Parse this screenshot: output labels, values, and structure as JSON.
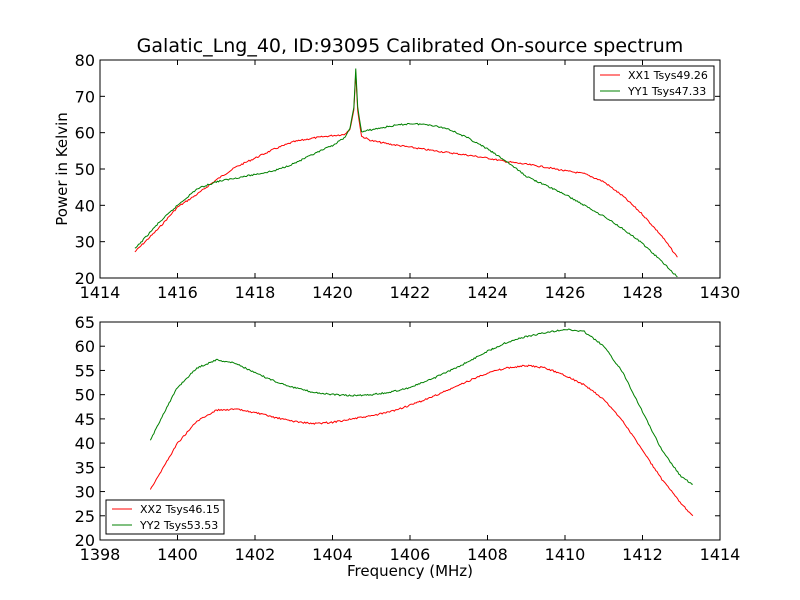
{
  "chart_data": [
    {
      "type": "line",
      "title": "Galatic_Lng_40, ID:93095 Calibrated On-source spectrum",
      "xlabel": "",
      "ylabel": "Power in Kelvin",
      "xlim": [
        1414,
        1430
      ],
      "ylim": [
        20,
        80
      ],
      "xticks": [
        1414,
        1416,
        1418,
        1420,
        1422,
        1424,
        1426,
        1428,
        1430
      ],
      "yticks": [
        20,
        30,
        40,
        50,
        60,
        70,
        80
      ],
      "grid": false,
      "legend_position": "top-right",
      "series": [
        {
          "name": "XX1 Tsys49.26",
          "color": "#ff0000",
          "x": [
            1414.9,
            1415.5,
            1416.0,
            1416.5,
            1417.0,
            1417.5,
            1418.0,
            1418.5,
            1419.0,
            1419.5,
            1420.0,
            1420.3,
            1420.45,
            1420.55,
            1420.6,
            1420.65,
            1420.75,
            1421.0,
            1421.5,
            1422.0,
            1422.5,
            1423.0,
            1423.5,
            1424.0,
            1424.5,
            1425.0,
            1425.5,
            1426.0,
            1426.5,
            1427.0,
            1427.5,
            1428.0,
            1428.5,
            1428.9
          ],
          "y": [
            27.2,
            33.5,
            39.5,
            43.0,
            47.0,
            50.5,
            53.0,
            55.5,
            57.5,
            58.5,
            59.2,
            59.5,
            61.0,
            66.0,
            76.5,
            66.0,
            59.0,
            57.8,
            56.8,
            56.0,
            55.2,
            54.5,
            53.8,
            53.0,
            52.0,
            51.3,
            50.5,
            49.5,
            48.7,
            46.5,
            42.5,
            37.5,
            31.5,
            25.7
          ]
        },
        {
          "name": "YY1 Tsys47.33",
          "color": "#008000",
          "x": [
            1414.9,
            1415.5,
            1416.0,
            1416.5,
            1417.0,
            1417.5,
            1418.0,
            1418.5,
            1419.0,
            1419.5,
            1420.0,
            1420.3,
            1420.45,
            1420.55,
            1420.6,
            1420.65,
            1420.75,
            1421.0,
            1421.5,
            1422.0,
            1422.5,
            1423.0,
            1423.5,
            1424.0,
            1424.5,
            1425.0,
            1425.5,
            1426.0,
            1426.5,
            1427.0,
            1427.5,
            1428.0,
            1428.5,
            1428.9
          ],
          "y": [
            28.0,
            35.0,
            40.0,
            44.5,
            46.5,
            47.5,
            48.5,
            49.5,
            51.5,
            54.0,
            56.5,
            58.5,
            61.0,
            67.0,
            77.5,
            67.0,
            60.2,
            60.8,
            61.8,
            62.5,
            62.2,
            61.0,
            58.5,
            55.5,
            52.0,
            48.0,
            45.5,
            43.0,
            40.0,
            37.0,
            33.5,
            29.5,
            24.5,
            20.3
          ]
        }
      ]
    },
    {
      "type": "line",
      "title": "",
      "xlabel": "Frequency (MHz)",
      "ylabel": "",
      "xlim": [
        1398,
        1414
      ],
      "ylim": [
        20,
        65
      ],
      "xticks": [
        1398,
        1400,
        1402,
        1404,
        1406,
        1408,
        1410,
        1412,
        1414
      ],
      "yticks": [
        20,
        25,
        30,
        35,
        40,
        45,
        50,
        55,
        60,
        65
      ],
      "grid": false,
      "legend_position": "bottom-left",
      "series": [
        {
          "name": "XX2 Tsys46.15",
          "color": "#ff0000",
          "x": [
            1399.3,
            1399.6,
            1400.0,
            1400.5,
            1401.0,
            1401.5,
            1402.0,
            1402.5,
            1403.0,
            1403.5,
            1404.0,
            1404.5,
            1405.0,
            1405.5,
            1406.0,
            1406.5,
            1407.0,
            1407.5,
            1408.0,
            1408.5,
            1409.0,
            1409.5,
            1410.0,
            1410.5,
            1411.0,
            1411.5,
            1412.0,
            1412.5,
            1413.0,
            1413.3
          ],
          "y": [
            30.5,
            34.5,
            40.0,
            44.5,
            46.8,
            47.0,
            46.3,
            45.3,
            44.5,
            44.0,
            44.3,
            45.0,
            45.6,
            46.5,
            47.8,
            49.3,
            51.0,
            52.8,
            54.5,
            55.5,
            56.0,
            55.5,
            54.0,
            52.0,
            49.0,
            44.5,
            38.5,
            32.5,
            27.5,
            25.0
          ]
        },
        {
          "name": "YY2 Tsys53.53",
          "color": "#008000",
          "x": [
            1399.3,
            1399.6,
            1400.0,
            1400.5,
            1401.0,
            1401.5,
            1402.0,
            1402.5,
            1403.0,
            1403.5,
            1404.0,
            1404.5,
            1405.0,
            1405.5,
            1406.0,
            1406.5,
            1407.0,
            1407.5,
            1408.0,
            1408.5,
            1409.0,
            1409.5,
            1410.0,
            1410.5,
            1411.0,
            1411.5,
            1412.0,
            1412.5,
            1413.0,
            1413.3
          ],
          "y": [
            40.5,
            45.5,
            51.5,
            55.5,
            57.2,
            56.5,
            54.5,
            52.8,
            51.5,
            50.5,
            50.0,
            49.8,
            50.0,
            50.5,
            51.5,
            53.0,
            54.8,
            56.8,
            59.0,
            60.8,
            62.0,
            62.8,
            63.5,
            63.0,
            60.0,
            54.5,
            46.5,
            38.5,
            33.0,
            31.5
          ]
        }
      ]
    }
  ]
}
